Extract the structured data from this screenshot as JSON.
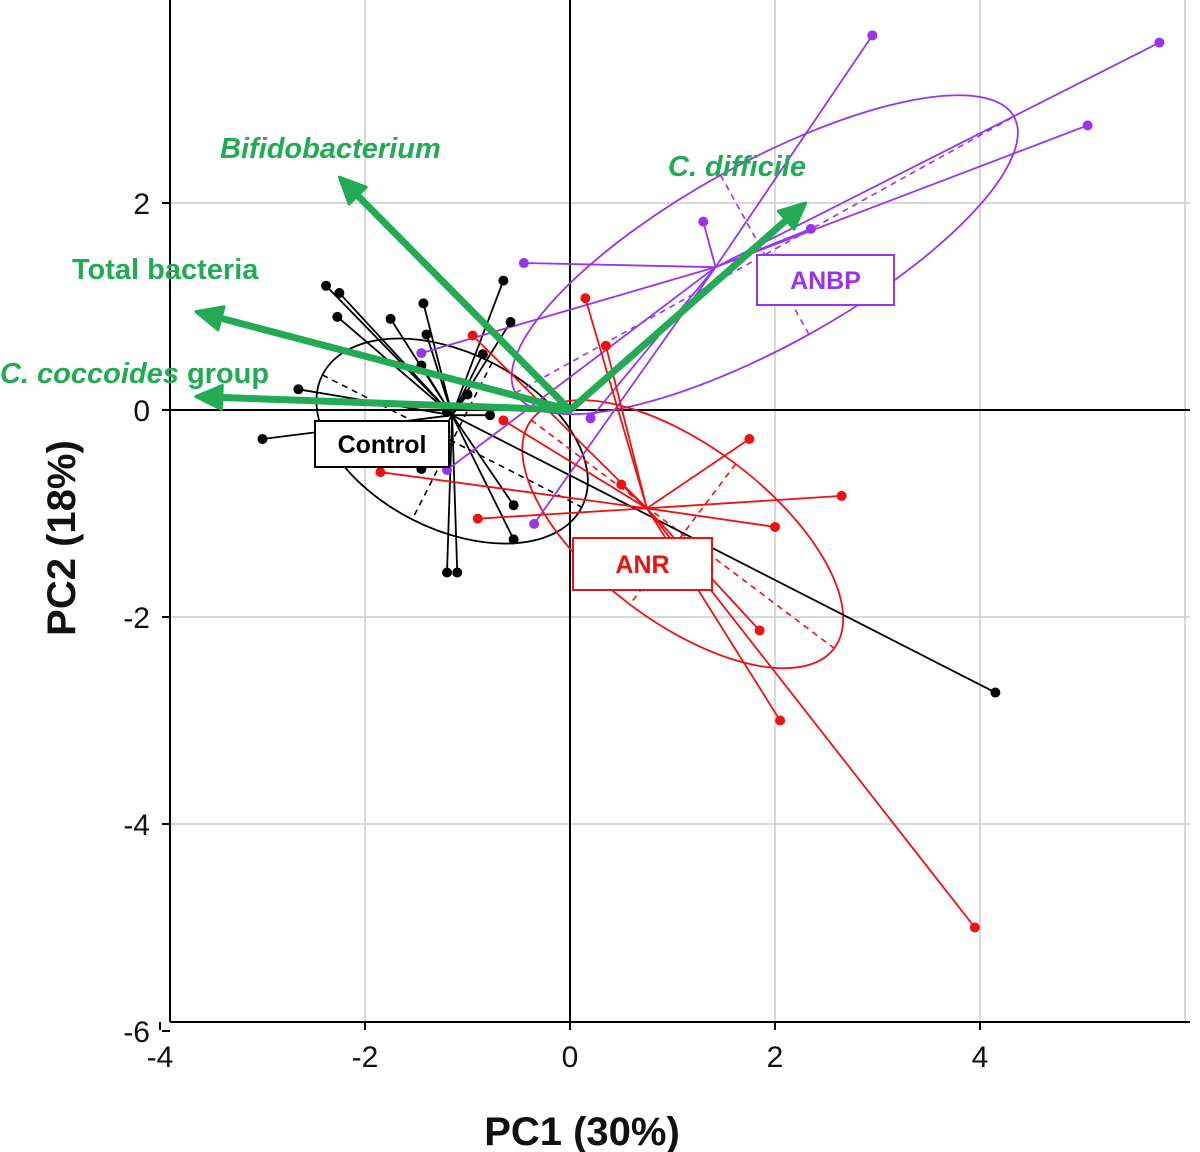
{
  "chart_data": {
    "type": "scatter",
    "subtype": "PCA biplot with group centroids, 95% ellipses and variable loading vectors",
    "xlabel": "PC1 (30%)",
    "ylabel": "PC2 (18%)",
    "xlim": [
      -4,
      5.8
    ],
    "ylim": [
      -5.9,
      4.0
    ],
    "xticks": [
      -4,
      -2,
      0,
      2,
      4
    ],
    "yticks": [
      -6,
      -4,
      -2,
      0,
      2
    ],
    "grid": true,
    "colors": {
      "Control": "#000000",
      "ANBP": "#9933ee",
      "ANR": "#ee1111",
      "vectors": "#22aa55",
      "grid": "#cccccc"
    },
    "series": [
      {
        "name": "Control",
        "label": "Control",
        "centroid": [
          -1.15,
          -0.05
        ],
        "ellipse": {
          "center": [
            -1.15,
            -0.3
          ],
          "rx": 1.42,
          "ry": 0.85,
          "angle_deg": -27
        },
        "points": [
          [
            -3.0,
            -0.28
          ],
          [
            -2.65,
            0.2
          ],
          [
            -2.38,
            1.2
          ],
          [
            -2.25,
            1.13
          ],
          [
            -2.27,
            0.9
          ],
          [
            -1.75,
            0.88
          ],
          [
            -1.43,
            1.03
          ],
          [
            -1.4,
            0.73
          ],
          [
            -1.45,
            0.43
          ],
          [
            -1.45,
            -0.57
          ],
          [
            -1.2,
            -0.02
          ],
          [
            -1.2,
            -1.57
          ],
          [
            -1.1,
            -1.57
          ],
          [
            -1.0,
            0.15
          ],
          [
            -0.85,
            0.54
          ],
          [
            -0.78,
            -0.05
          ],
          [
            -0.65,
            1.25
          ],
          [
            -0.58,
            0.85
          ],
          [
            -0.55,
            -0.92
          ],
          [
            -0.55,
            -1.25
          ],
          [
            4.15,
            -2.73
          ]
        ]
      },
      {
        "name": "ANBP",
        "label": "ANBP",
        "centroid": [
          1.42,
          1.38
        ],
        "ellipse": {
          "center": [
            1.9,
            1.5
          ],
          "rx": 2.78,
          "ry": 0.88,
          "angle_deg": 29
        },
        "points": [
          [
            -1.45,
            0.55
          ],
          [
            -1.2,
            -0.58
          ],
          [
            -0.45,
            1.42
          ],
          [
            -0.35,
            -1.1
          ],
          [
            0.2,
            -0.08
          ],
          [
            1.3,
            1.82
          ],
          [
            2.35,
            1.75
          ],
          [
            2.95,
            3.62
          ],
          [
            5.05,
            2.75
          ],
          [
            5.75,
            3.55
          ]
        ]
      },
      {
        "name": "ANR",
        "label": "ANR",
        "centroid": [
          0.75,
          -0.95
        ],
        "ellipse": {
          "center": [
            1.1,
            -1.2
          ],
          "rx": 1.85,
          "ry": 0.85,
          "angle_deg": -37
        },
        "points": [
          [
            -1.85,
            -0.6
          ],
          [
            -0.95,
            0.72
          ],
          [
            -0.9,
            -1.05
          ],
          [
            -0.65,
            -0.1
          ],
          [
            0.15,
            1.08
          ],
          [
            0.35,
            0.62
          ],
          [
            0.5,
            -0.72
          ],
          [
            1.75,
            -0.28
          ],
          [
            2.0,
            -1.13
          ],
          [
            1.85,
            -2.13
          ],
          [
            2.05,
            -3.0
          ],
          [
            2.65,
            -0.83
          ],
          [
            3.95,
            -5.0
          ]
        ]
      }
    ],
    "vectors": [
      {
        "name": "Bifidobacterium",
        "label": "Bifidobacterium",
        "italic": true,
        "end": [
          -2.25,
          2.25
        ]
      },
      {
        "name": "C. difficile",
        "label": "C. difficile",
        "italic": true,
        "end": [
          2.3,
          2.0
        ]
      },
      {
        "name": "Total bacteria",
        "label": "Total bacteria",
        "italic": false,
        "end": [
          -3.65,
          0.95
        ]
      },
      {
        "name": "C. coccoides group",
        "label_italic": "C. coccoides",
        "label_plain": " group",
        "italic": true,
        "end": [
          -3.65,
          0.13
        ]
      }
    ]
  }
}
